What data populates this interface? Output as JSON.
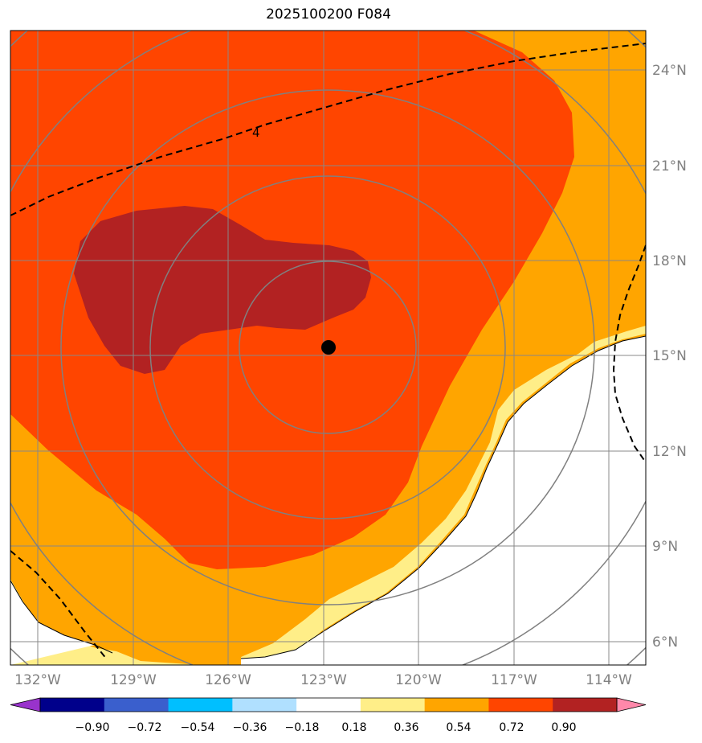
{
  "title": "2025100200 F084",
  "map": {
    "lat_labels": [
      "24°N",
      "21°N",
      "18°N",
      "15°N",
      "12°N",
      "9°N",
      "6°N"
    ],
    "lon_labels": [
      "132°W",
      "129°W",
      "126°W",
      "123°W",
      "120°W",
      "117°W",
      "114°W"
    ],
    "contour_label": "4",
    "center_marker": "storm-center"
  },
  "colorbar": {
    "labels": [
      "−0.90",
      "−0.72",
      "−0.54",
      "−0.36",
      "−0.18",
      "0.18",
      "0.36",
      "0.54",
      "0.72",
      "0.90"
    ],
    "colors": [
      "#9933cc",
      "#00008b",
      "#3a5fcd",
      "#00bfff",
      "#b0e0ff",
      "#ffffff",
      "#ffee88",
      "#ffa500",
      "#ff4500",
      "#b22222",
      "#ff88aa"
    ]
  },
  "colors": {
    "ocean_base": "#ff4500",
    "band_orange": "#ffa500",
    "band_yellow": "#ffee88",
    "core": "#b22222",
    "land": "#ffffff",
    "grid": "#888888"
  }
}
